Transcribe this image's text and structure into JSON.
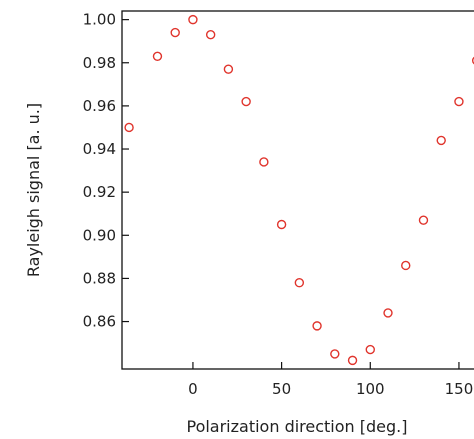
{
  "chart_data": {
    "type": "scatter",
    "title": "",
    "xlabel": "Polarization direction [deg.]",
    "ylabel": "Rayleigh signal [a. u.]",
    "xlim": [
      -40,
      163
    ],
    "ylim": [
      0.838,
      1.004
    ],
    "xticks": [
      0,
      50,
      100,
      150
    ],
    "xtick_labels": [
      "0",
      "50",
      "100",
      "150"
    ],
    "yticks": [
      0.86,
      0.88,
      0.9,
      0.92,
      0.94,
      0.96,
      0.98,
      1.0
    ],
    "ytick_labels": [
      "0.86",
      "0.88",
      "0.90",
      "0.92",
      "0.94",
      "0.96",
      "0.98",
      "1.00"
    ],
    "grid": false,
    "marker": "open-circle",
    "marker_color": "#e0342c",
    "axis_color": "#111111",
    "series": [
      {
        "x": [
          -36,
          -20,
          -10,
          0,
          10,
          20,
          30,
          40,
          50,
          60,
          70,
          80,
          90,
          100,
          110,
          120,
          130,
          140,
          150,
          160
        ],
        "y": [
          0.95,
          0.983,
          0.994,
          1.0,
          0.993,
          0.977,
          0.962,
          0.934,
          0.905,
          0.878,
          0.858,
          0.845,
          0.842,
          0.847,
          0.864,
          0.886,
          0.907,
          0.944,
          0.962,
          0.981
        ]
      }
    ]
  }
}
